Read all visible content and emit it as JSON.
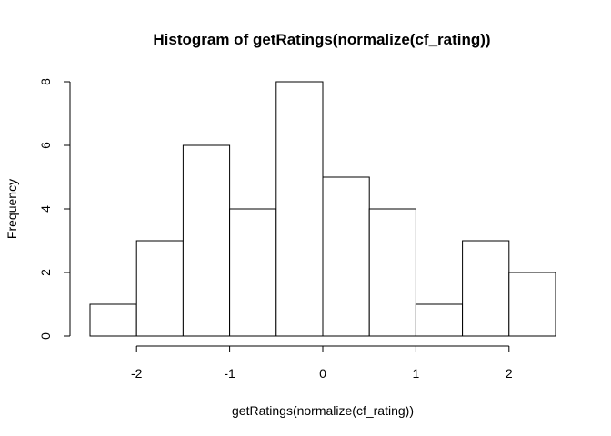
{
  "chart_data": {
    "type": "bar",
    "title": "Histogram of getRatings(normalize(cf_rating))",
    "xlabel": "getRatings(normalize(cf_rating))",
    "ylabel": "Frequency",
    "bins": [
      {
        "start": -2.5,
        "end": -2.0,
        "count": 1
      },
      {
        "start": -2.0,
        "end": -1.5,
        "count": 3
      },
      {
        "start": -1.5,
        "end": -1.0,
        "count": 6
      },
      {
        "start": -1.0,
        "end": -0.5,
        "count": 4
      },
      {
        "start": -0.5,
        "end": 0.0,
        "count": 8
      },
      {
        "start": 0.0,
        "end": 0.5,
        "count": 5
      },
      {
        "start": 0.5,
        "end": 1.0,
        "count": 4
      },
      {
        "start": 1.0,
        "end": 1.5,
        "count": 1
      },
      {
        "start": 1.5,
        "end": 2.0,
        "count": 3
      },
      {
        "start": 2.0,
        "end": 2.5,
        "count": 2
      }
    ],
    "xlim": [
      -2.5,
      2.5
    ],
    "ylim": [
      0,
      8
    ],
    "x_ticks": [
      -2,
      -1,
      0,
      1,
      2
    ],
    "x_tick_labels": [
      "-2",
      "-1",
      "0",
      "1",
      "2"
    ],
    "y_ticks": [
      0,
      2,
      4,
      6,
      8
    ],
    "y_tick_labels": [
      "0",
      "2",
      "4",
      "6",
      "8"
    ],
    "grid": false,
    "bar_fill": "#ffffff",
    "bar_stroke": "#000000"
  }
}
